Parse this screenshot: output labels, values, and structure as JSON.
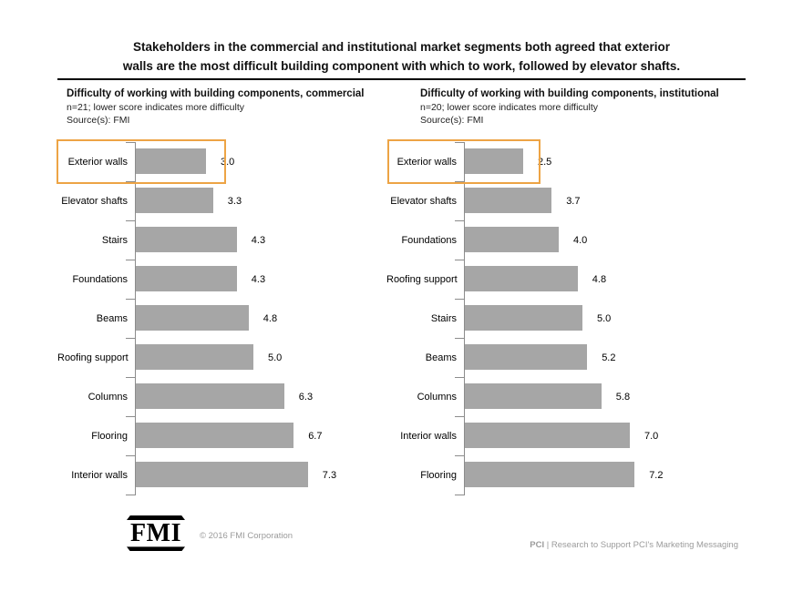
{
  "title_line1": "Stakeholders in the commercial and institutional market segments both agreed that exterior",
  "title_line2": "walls are the most difficult building component with which to work, followed by elevator shafts.",
  "footer": {
    "logo_text": "FMI",
    "copyright": "© 2016 FMI Corporation",
    "note_bold": "PCI",
    "note_rest": " | Research to Support PCI's Marketing Messaging"
  },
  "chart_data": [
    {
      "type": "bar",
      "orientation": "horizontal",
      "title": "Difficulty of working with building components, commercial",
      "subtitle": "n=21; lower score indicates more difficulty",
      "source": "Source(s): FMI",
      "categories": [
        "Exterior walls",
        "Elevator shafts",
        "Stairs",
        "Foundations",
        "Beams",
        "Roofing support",
        "Columns",
        "Flooring",
        "Interior walls"
      ],
      "values": [
        3.0,
        3.3,
        4.3,
        4.3,
        4.8,
        5.0,
        6.3,
        6.7,
        7.3
      ],
      "value_format": "1-decimal",
      "xlim": [
        0,
        8
      ],
      "grid": false,
      "legend": "none",
      "bar_color": "#a6a6a6",
      "highlight_index": 0,
      "highlight_box_color": "#eda445"
    },
    {
      "type": "bar",
      "orientation": "horizontal",
      "title": "Difficulty of working with building components, institutional",
      "subtitle": "n=20; lower score indicates more difficulty",
      "source": "Source(s): FMI",
      "categories": [
        "Exterior walls",
        "Elevator shafts",
        "Foundations",
        "Roofing support",
        "Stairs",
        "Beams",
        "Columns",
        "Interior walls",
        "Flooring"
      ],
      "values": [
        2.5,
        3.7,
        4.0,
        4.8,
        5.0,
        5.2,
        5.8,
        7.0,
        7.2
      ],
      "value_format": "1-decimal",
      "xlim": [
        0,
        8
      ],
      "grid": false,
      "legend": "none",
      "bar_color": "#a6a6a6",
      "highlight_index": 0,
      "highlight_box_color": "#eda445"
    }
  ]
}
